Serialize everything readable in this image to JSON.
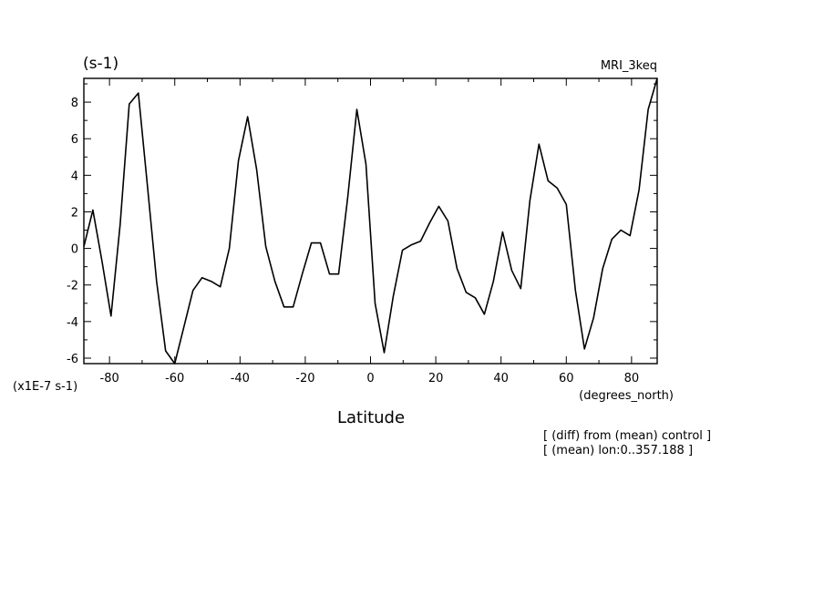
{
  "chart_data": {
    "type": "line",
    "units_label": "(s-1)",
    "model_label": "MRI_3keq",
    "xlabel": "Latitude",
    "xunits": "(degrees_north)",
    "yscale_label": "(x1E-7 s-1)",
    "xlim": [
      -87.86,
      87.86
    ],
    "ylim": [
      -6.3,
      9.3
    ],
    "xticks": [
      -80,
      -60,
      -40,
      -20,
      0,
      20,
      40,
      60,
      80
    ],
    "yticks": [
      -6,
      -4,
      -2,
      0,
      2,
      4,
      6,
      8
    ],
    "annotations": [
      "[ (diff) from (mean) control ]",
      "[ (mean) lon:0..357.188 ]"
    ],
    "series": [
      {
        "x": [
          -87.86,
          -85.1,
          -82.31,
          -79.53,
          -76.74,
          -73.95,
          -71.16,
          -68.37,
          -65.58,
          -62.79,
          -60.0,
          -57.21,
          -54.42,
          -51.63,
          -48.84,
          -46.05,
          -43.26,
          -40.47,
          -37.67,
          -34.88,
          -32.09,
          -29.3,
          -26.51,
          -23.72,
          -20.93,
          -18.14,
          -15.35,
          -12.56,
          -9.77,
          -6.98,
          -4.19,
          -1.4,
          1.4,
          4.19,
          6.98,
          9.77,
          12.56,
          15.35,
          18.14,
          20.93,
          23.72,
          26.51,
          29.3,
          32.09,
          34.88,
          37.67,
          40.47,
          43.26,
          46.05,
          48.84,
          51.63,
          54.42,
          57.21,
          60.0,
          62.79,
          65.58,
          68.37,
          71.16,
          73.95,
          76.74,
          79.53,
          82.31,
          85.1,
          87.86
        ],
        "values": [
          0.1,
          2.1,
          -0.7,
          -3.7,
          1.3,
          7.9,
          8.5,
          3.4,
          -1.8,
          -5.6,
          -6.3,
          -4.3,
          -2.3,
          -1.6,
          -1.8,
          -2.1,
          0.0,
          4.8,
          7.2,
          4.3,
          0.1,
          -1.8,
          -3.2,
          -3.2,
          -1.4,
          0.3,
          0.3,
          -1.4,
          -1.4,
          2.8,
          7.6,
          4.6,
          -3.0,
          -5.7,
          -2.6,
          -0.1,
          0.2,
          0.4,
          1.4,
          2.3,
          1.5,
          -1.1,
          -2.4,
          -2.7,
          -3.6,
          -1.8,
          0.9,
          -1.2,
          -2.2,
          2.6,
          5.7,
          3.7,
          3.3,
          2.4,
          -2.3,
          -5.5,
          -3.8,
          -1.1,
          0.5,
          1.0,
          0.7,
          3.2,
          7.6,
          9.3
        ]
      }
    ]
  }
}
